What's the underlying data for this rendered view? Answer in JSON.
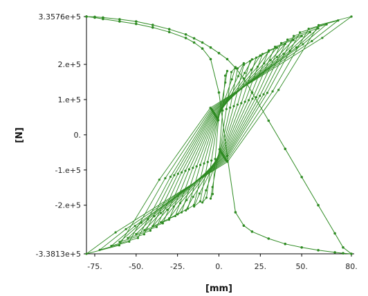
{
  "chart_data": {
    "type": "line",
    "title": "",
    "xlabel": "[mm]",
    "ylabel": "[N]",
    "xlim": [
      -80,
      80
    ],
    "ylim": [
      -338130,
      335760
    ],
    "x_ticks": [
      -75,
      -50,
      -25,
      0,
      25,
      50,
      80
    ],
    "x_tick_labels": [
      "-75.",
      "-50.",
      "-25.",
      "0.",
      "25.",
      "50.",
      "80."
    ],
    "y_ticks": [
      335760,
      200000,
      100000,
      0,
      -100000,
      -200000,
      -338130
    ],
    "y_tick_labels": [
      "3.3576e+5",
      "2.e+5",
      "1.e+5",
      "0.",
      "-1.e+5",
      "-2.e+5",
      "-3.3813e+5"
    ],
    "grid": false,
    "legend": "none",
    "series_color": "#2e8b22",
    "loop_count": 15,
    "loop_amplitudes_mm": [
      5,
      10,
      15,
      20,
      25,
      30,
      35,
      40,
      45,
      50,
      55,
      60,
      65,
      72,
      80
    ],
    "peak_force_N": [
      335760,
      -338130
    ],
    "series": [
      {
        "name": "",
        "x": [
          -80,
          -75,
          -70,
          -60,
          -50,
          -40,
          -30,
          -20,
          -15,
          -10,
          -5,
          0,
          5,
          10,
          15,
          20,
          30,
          40,
          50,
          60,
          70,
          75,
          80,
          75,
          70,
          60,
          50,
          40,
          30,
          20,
          15,
          10,
          5,
          0,
          -5,
          -10,
          -15,
          -20,
          -30,
          -40,
          -50,
          -60,
          -70,
          -75,
          -80
        ],
        "y": [
          335760,
          333000,
          329000,
          322000,
          315000,
          305000,
          292000,
          275000,
          262000,
          245000,
          215000,
          120000,
          -60000,
          -220000,
          -258000,
          -275000,
          -295000,
          -310000,
          -320000,
          -328000,
          -334000,
          -336500,
          -338130,
          -320000,
          -280000,
          -200000,
          -120000,
          -40000,
          40000,
          120000,
          160000,
          190000,
          215000,
          232000,
          248000,
          262000,
          274000,
          285000,
          300000,
          312000,
          322000,
          328000,
          333000,
          335000,
          335760
        ]
      }
    ]
  }
}
